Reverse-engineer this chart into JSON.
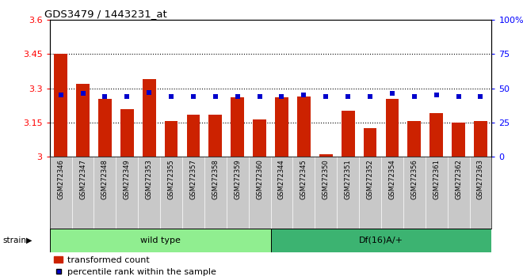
{
  "title": "GDS3479 / 1443231_at",
  "categories": [
    "GSM272346",
    "GSM272347",
    "GSM272348",
    "GSM272349",
    "GSM272353",
    "GSM272355",
    "GSM272357",
    "GSM272358",
    "GSM272359",
    "GSM272360",
    "GSM272344",
    "GSM272345",
    "GSM272350",
    "GSM272351",
    "GSM272352",
    "GSM272354",
    "GSM272356",
    "GSM272361",
    "GSM272362",
    "GSM272363"
  ],
  "bar_values": [
    3.45,
    3.32,
    3.255,
    3.21,
    3.34,
    3.155,
    3.185,
    3.185,
    3.26,
    3.165,
    3.26,
    3.265,
    3.01,
    3.2,
    3.125,
    3.255,
    3.155,
    3.19,
    3.148,
    3.155
  ],
  "percentile_values": [
    45,
    46,
    44,
    44,
    47,
    44,
    44,
    44,
    44,
    44,
    44,
    45,
    44,
    44,
    44,
    46,
    44,
    45,
    44,
    44
  ],
  "bar_color": "#cc2200",
  "percentile_color": "#0000cc",
  "ylim_left": [
    3.0,
    3.6
  ],
  "ylim_right": [
    0,
    100
  ],
  "yticks_left": [
    3.0,
    3.15,
    3.3,
    3.45,
    3.6
  ],
  "ytick_labels_left": [
    "3",
    "3.15",
    "3.3",
    "3.45",
    "3.6"
  ],
  "yticks_right": [
    0,
    25,
    50,
    75,
    100
  ],
  "ytick_labels_right": [
    "0",
    "25",
    "50",
    "75",
    "100%"
  ],
  "grid_lines": [
    3.15,
    3.3,
    3.45
  ],
  "wild_type_count": 10,
  "group1_label": "wild type",
  "group2_label": "Df(16)A/+",
  "strain_label": "strain",
  "legend_items": [
    "transformed count",
    "percentile rank within the sample"
  ],
  "group1_color": "#90ee90",
  "group2_color": "#3cb371",
  "bar_width": 0.6,
  "plot_bg": "#ffffff",
  "xtick_bg": "#c8c8c8",
  "bar_color_legend": "#cc2200",
  "percentile_color_legend": "#0000cc"
}
